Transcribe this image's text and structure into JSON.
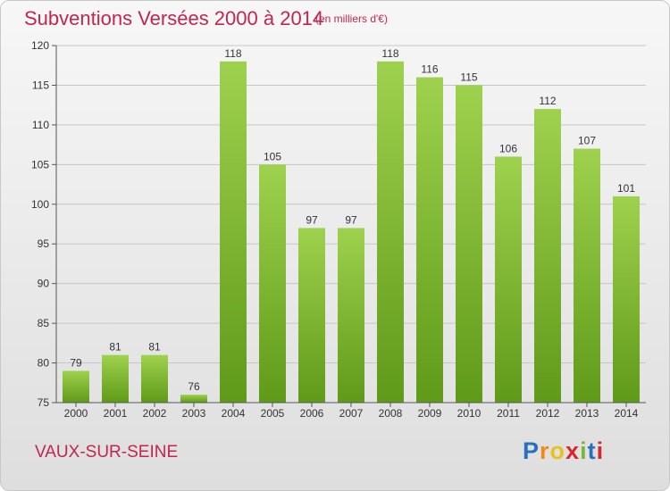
{
  "title": "Subventions Versées 2000 à 2014",
  "subtitle": "(en milliers d'€)",
  "commune": "VAUX-SUR-SEINE",
  "logo": {
    "letters": [
      "P",
      "r",
      "o",
      "x",
      "i",
      "t",
      "i"
    ],
    "colors": [
      "#2a6fbe",
      "#f08a1c",
      "#e8c21a",
      "#d8262e",
      "#7ab832",
      "#2a6fbe",
      "#d8262e"
    ]
  },
  "colors": {
    "title": "#c0264f",
    "bar_light": "#9ed14e",
    "bar_dark": "#5f9a18"
  },
  "chart_data": {
    "type": "bar",
    "title": "Subventions Versées 2000 à 2014",
    "subtitle": "(en milliers d'€)",
    "categories": [
      "2000",
      "2001",
      "2002",
      "2003",
      "2004",
      "2005",
      "2006",
      "2007",
      "2008",
      "2009",
      "2010",
      "2011",
      "2012",
      "2013",
      "2014"
    ],
    "values": [
      79,
      81,
      81,
      76,
      118,
      105,
      97,
      97,
      118,
      116,
      115,
      106,
      112,
      107,
      101
    ],
    "ylim": [
      75,
      120
    ],
    "yticks": [
      75,
      80,
      85,
      90,
      95,
      100,
      105,
      110,
      115,
      120
    ],
    "grid": true,
    "xlabel": "",
    "ylabel": ""
  }
}
